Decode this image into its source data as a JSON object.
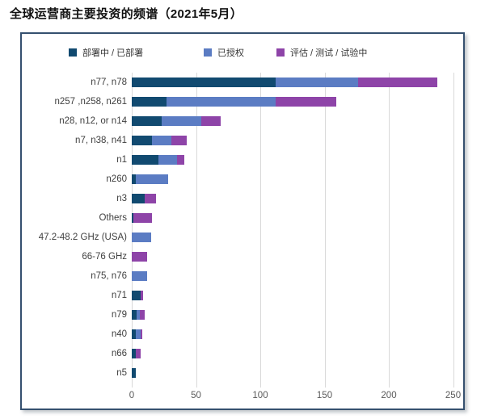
{
  "title": "全球运营商主要投资的频谱（2021年5月）",
  "legend": [
    {
      "label": "部署中 / 已部署",
      "color": "#114A70"
    },
    {
      "label": "已授权",
      "color": "#5B7CC3"
    },
    {
      "label": "评估 / 测试 / 试验中",
      "color": "#8E44A8"
    }
  ],
  "styles": {
    "panel_border": "#35506F",
    "gridline": "#D9D9D9",
    "background": "#FFFFFF"
  },
  "chart_data": {
    "type": "bar",
    "orientation": "horizontal",
    "stacked": true,
    "title": "全球运营商主要投资的频谱（2021年5月）",
    "xlabel": "",
    "ylabel": "",
    "xlim": [
      0,
      254
    ],
    "x_ticks": [
      0,
      50,
      100,
      150,
      200,
      250
    ],
    "grid": "vertical",
    "legend_position": "top",
    "categories": [
      "n77, n78",
      "n257 ,n258, n261",
      "n28, n12, or n14",
      "n7, n38, n41",
      "n1",
      "n260",
      "n3",
      "Others",
      "47.2-48.2 GHz (USA)",
      "66-76 GHz",
      "n75, n76",
      "n71",
      "n79",
      "n40",
      "n66",
      "n5"
    ],
    "series": [
      {
        "name": "部署中 / 已部署",
        "color": "#114A70",
        "values": [
          112,
          27,
          23,
          16,
          21,
          3,
          10,
          1,
          0,
          0,
          0,
          7,
          4,
          3,
          3,
          3
        ]
      },
      {
        "name": "已授权",
        "color": "#5B7CC3",
        "values": [
          64,
          85,
          31,
          15,
          14,
          25,
          0,
          0,
          15,
          0,
          12,
          0,
          2,
          4,
          0,
          0
        ]
      },
      {
        "name": "评估 / 测试 / 试验中",
        "color": "#8E44A8",
        "values": [
          62,
          47,
          15,
          12,
          6,
          0,
          9,
          15,
          0,
          12,
          0,
          2,
          4,
          1,
          4,
          0
        ]
      }
    ]
  }
}
